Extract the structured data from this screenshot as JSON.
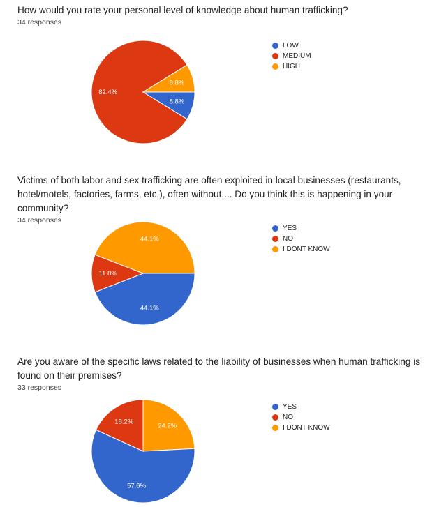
{
  "questions": [
    {
      "title": "How would you rate your personal level of knowledge about human trafficking?",
      "responses": "34 responses"
    },
    {
      "title": "Victims of both labor and sex trafficking are often exploited in local businesses (restaurants, hotel/motels, factories, farms, etc.), often without.... Do you think this is happening in your community?",
      "responses": "34 responses"
    },
    {
      "title": "Are you aware of the specific laws related to the liability of businesses when human trafficking is found on their premises?",
      "responses": "33 responses"
    }
  ],
  "chart_data": [
    {
      "type": "pie",
      "categories": [
        "LOW",
        "MEDIUM",
        "HIGH"
      ],
      "values": [
        8.8,
        82.4,
        8.8
      ],
      "labels": [
        "8.8%",
        "82.4%",
        "8.8%"
      ],
      "colors": [
        "#3366cc",
        "#dc3912",
        "#ff9900"
      ],
      "legend": "right"
    },
    {
      "type": "pie",
      "categories": [
        "YES",
        "NO",
        "I DONT KNOW"
      ],
      "values": [
        44.1,
        11.8,
        44.1
      ],
      "labels": [
        "44.1%",
        "11.8%",
        "44.1%"
      ],
      "colors": [
        "#3366cc",
        "#dc3912",
        "#ff9900"
      ],
      "legend": "right"
    },
    {
      "type": "pie",
      "categories": [
        "YES",
        "NO",
        "I DONT KNOW"
      ],
      "values": [
        57.6,
        18.2,
        24.2
      ],
      "labels": [
        "57.6%",
        "18.2%",
        "24.2%"
      ],
      "colors": [
        "#3366cc",
        "#dc3912",
        "#ff9900"
      ],
      "legend": "right"
    }
  ]
}
